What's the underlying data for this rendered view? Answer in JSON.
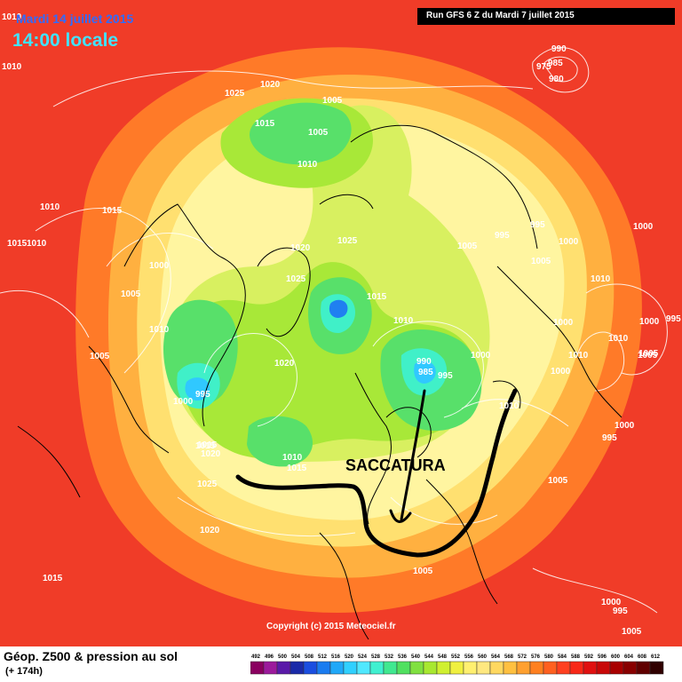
{
  "header": {
    "date": "Mardi 14 juillet 2015",
    "time": "14:00 locale",
    "run_info": "Run GFS 6 Z du Mardi 7 juillet 2015"
  },
  "annotation": {
    "label": "SACCATURA"
  },
  "copyright": "Copyright (c) 2015 Meteociel.fr",
  "legend": {
    "title": "Géop. Z500 & pression au sol",
    "subtitle": "(+ 174h)",
    "values": [
      "492",
      "496",
      "500",
      "504",
      "508",
      "512",
      "516",
      "520",
      "524",
      "528",
      "532",
      "536",
      "540",
      "544",
      "548",
      "552",
      "556",
      "560",
      "564",
      "568",
      "572",
      "576",
      "580",
      "584",
      "588",
      "592",
      "596",
      "600",
      "604",
      "608",
      "612"
    ],
    "colors": [
      "#8a0060",
      "#9c1a9c",
      "#5a1aa8",
      "#1a2aa8",
      "#1a4ee0",
      "#1a7cf0",
      "#20a8f8",
      "#30d0ff",
      "#50e8ff",
      "#40f0d0",
      "#40e890",
      "#50e060",
      "#80e040",
      "#a8e830",
      "#d0f030",
      "#f0f040",
      "#fff070",
      "#ffe880",
      "#ffd860",
      "#ffc040",
      "#ffa030",
      "#ff8020",
      "#ff6020",
      "#ff4020",
      "#f82818",
      "#e01010",
      "#c80808",
      "#a80000",
      "#880000",
      "#600000",
      "#300000"
    ]
  },
  "isobar_labels": [
    "1010",
    "1010",
    "1020",
    "1025",
    "1005",
    "1015",
    "1005",
    "1010",
    "1010",
    "1015",
    "1015",
    "1010",
    "1000",
    "1005",
    "1010",
    "1005",
    "1000",
    "995",
    "1020",
    "1025",
    "1005",
    "1025",
    "1015",
    "995",
    "995",
    "1000",
    "1005",
    "1000",
    "1010",
    "1000",
    "995",
    "1000",
    "1010",
    "1005",
    "1000",
    "1020",
    "1015",
    "1010",
    "1010",
    "985",
    "990",
    "995",
    "1000",
    "1005",
    "1010",
    "1000",
    "995",
    "995",
    "1015",
    "1020",
    "1025",
    "1010",
    "1015",
    "1005",
    "1020",
    "1015",
    "1005",
    "1005",
    "1000",
    "985",
    "990",
    "975",
    "980"
  ],
  "map_colors": {
    "background": "#f03c28",
    "ring1": "#ff7a28",
    "ring2": "#ffb040",
    "ring3": "#ffe070",
    "ring4": "#fff5a0",
    "ring5": "#d8f060",
    "ring6": "#a8e838",
    "ring7": "#58e06a",
    "ring8": "#40f0c8",
    "ring9": "#30c8ff",
    "ring10": "#2080f0",
    "isobar": "#ffffff",
    "coast": "#000000",
    "trough_line": "#000000"
  }
}
